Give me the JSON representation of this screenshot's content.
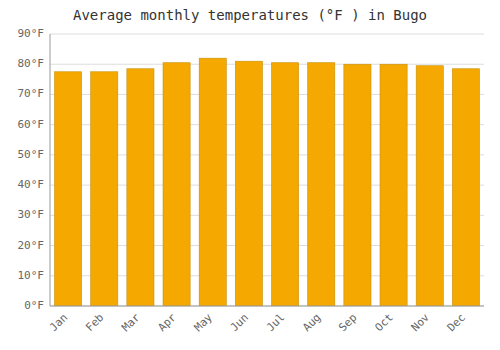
{
  "chart_data": {
    "type": "bar",
    "title": "Average monthly temperatures (°F ) in Bugo",
    "categories": [
      "Jan",
      "Feb",
      "Mar",
      "Apr",
      "May",
      "Jun",
      "Jul",
      "Aug",
      "Sep",
      "Oct",
      "Nov",
      "Dec"
    ],
    "values": [
      77.5,
      77.5,
      78.5,
      80.5,
      82.0,
      81.0,
      80.5,
      80.5,
      80.0,
      80.0,
      79.5,
      78.5
    ],
    "color": "#F5A800",
    "ylim": [
      0,
      90
    ],
    "yticks": [
      {
        "value": 0,
        "label": "0°F"
      },
      {
        "value": 10,
        "label": "10°F"
      },
      {
        "value": 20,
        "label": "20°F"
      },
      {
        "value": 30,
        "label": "30°F"
      },
      {
        "value": 40,
        "label": "40°F"
      },
      {
        "value": 50,
        "label": "50°F"
      },
      {
        "value": 60,
        "label": "60°F"
      },
      {
        "value": 70,
        "label": "70°F"
      },
      {
        "value": 80,
        "label": "80°F"
      },
      {
        "value": 90,
        "label": "90°F"
      }
    ],
    "grid": true
  }
}
